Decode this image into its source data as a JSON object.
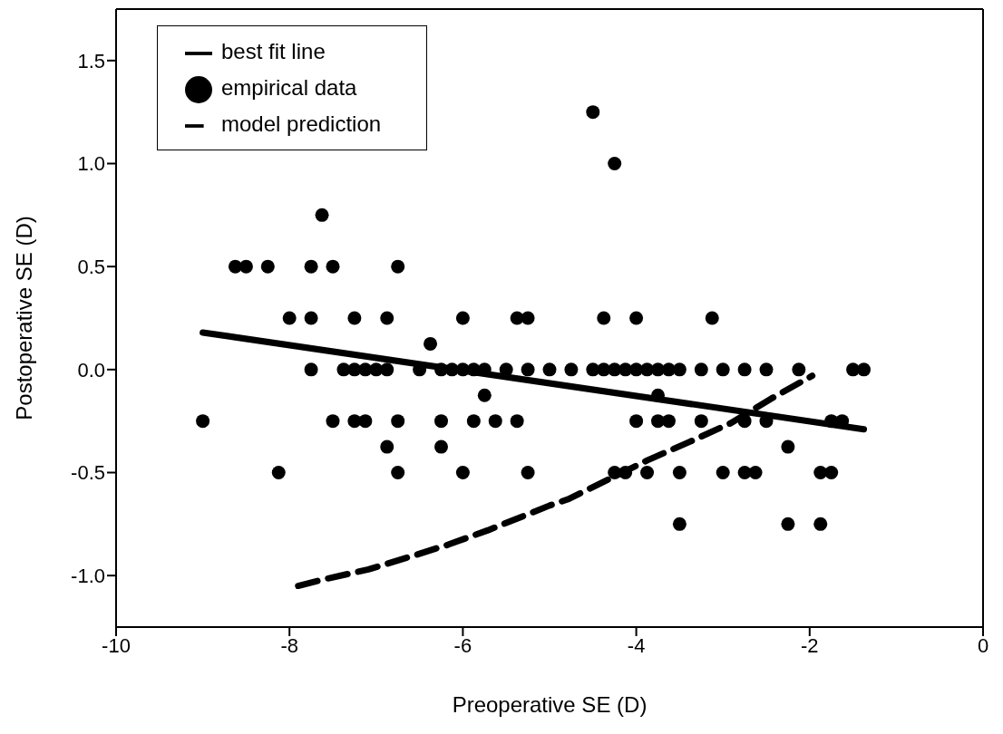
{
  "chart_data": {
    "type": "scatter",
    "xlabel": "Preoperative SE (D)",
    "ylabel": "Postoperative SE (D)",
    "xlim": [
      -10,
      0
    ],
    "xticks": [
      -10,
      -8,
      -6,
      -4,
      -2,
      0
    ],
    "ylim": [
      -1.25,
      1.75
    ],
    "yticks": [
      {
        "value": -1,
        "label": "-1.0"
      },
      {
        "value": -0.5,
        "label": "-0.5"
      },
      {
        "value": 0,
        "label": "0.0"
      },
      {
        "value": 0.5,
        "label": "0.5"
      },
      {
        "value": 1,
        "label": "1.0"
      },
      {
        "value": 1.5,
        "label": "1.5"
      }
    ],
    "grid": false,
    "legend": "top left",
    "series": [
      {
        "name": "empirical data",
        "color": "#000000",
        "marker": "circle",
        "x": [
          -4.5,
          -4.25,
          -7.625,
          -8.625,
          -8.5,
          -8.25,
          -7.75,
          -7.5,
          -6.75,
          -8.0,
          -7.75,
          -7.25,
          -6.875,
          -6.0,
          -5.375,
          -5.25,
          -4.375,
          -4.0,
          -3.125,
          -6.375,
          -7.75,
          -7.375,
          -7.25,
          -7.125,
          -7.0,
          -6.875,
          -6.5,
          -6.25,
          -6.125,
          -6.0,
          -5.875,
          -5.75,
          -5.5,
          -5.25,
          -5.0,
          -4.75,
          -4.5,
          -4.375,
          -4.25,
          -4.125,
          -4.0,
          -3.875,
          -3.75,
          -3.625,
          -3.5,
          -3.25,
          -3.0,
          -2.75,
          -2.5,
          -2.125,
          -1.5,
          -1.375,
          -5.75,
          -3.75,
          -9.0,
          -7.5,
          -7.25,
          -7.125,
          -6.75,
          -6.25,
          -5.875,
          -5.625,
          -5.375,
          -4.0,
          -3.75,
          -3.625,
          -3.25,
          -2.75,
          -2.5,
          -1.75,
          -1.625,
          -6.875,
          -6.25,
          -2.25,
          -8.125,
          -6.75,
          -6.0,
          -5.25,
          -4.25,
          -4.125,
          -3.875,
          -3.5,
          -3.0,
          -2.75,
          -2.625,
          -1.875,
          -1.75,
          -3.5,
          -2.25,
          -1.875
        ],
        "values": [
          1.25,
          1.0,
          0.75,
          0.5,
          0.5,
          0.5,
          0.5,
          0.5,
          0.5,
          0.25,
          0.25,
          0.25,
          0.25,
          0.25,
          0.25,
          0.25,
          0.25,
          0.25,
          0.25,
          0.125,
          0,
          0,
          0,
          0,
          0,
          0,
          0,
          0,
          0,
          0,
          0,
          0,
          0,
          0,
          0,
          0,
          0,
          0,
          0,
          0,
          0,
          0,
          0,
          0,
          0,
          0,
          0,
          0,
          0,
          0,
          0,
          0,
          -0.125,
          -0.125,
          -0.25,
          -0.25,
          -0.25,
          -0.25,
          -0.25,
          -0.25,
          -0.25,
          -0.25,
          -0.25,
          -0.25,
          -0.25,
          -0.25,
          -0.25,
          -0.25,
          -0.25,
          -0.25,
          -0.25,
          -0.375,
          -0.375,
          -0.375,
          -0.5,
          -0.5,
          -0.5,
          -0.5,
          -0.5,
          -0.5,
          -0.5,
          -0.5,
          -0.5,
          -0.5,
          -0.5,
          -0.5,
          -0.5,
          -0.75,
          -0.75,
          -0.75
        ]
      },
      {
        "name": "best fit line",
        "type": "line",
        "color": "#000000",
        "line_style": "solid",
        "x": [
          -9.0,
          -1.375
        ],
        "values": [
          0.18,
          -0.29
        ]
      },
      {
        "name": "model prediction",
        "type": "line",
        "color": "#000000",
        "line_style": "dashed",
        "x": [
          -7.9,
          -7.62,
          -7.09,
          -6.62,
          -6.17,
          -5.71,
          -5.0,
          -4.79,
          -3.87,
          -3.38,
          -2.91,
          -2.44,
          -1.97
        ],
        "values": [
          -1.05,
          -1.02,
          -0.97,
          -0.91,
          -0.85,
          -0.78,
          -0.66,
          -0.63,
          -0.44,
          -0.35,
          -0.26,
          -0.14,
          -0.03
        ]
      }
    ]
  }
}
